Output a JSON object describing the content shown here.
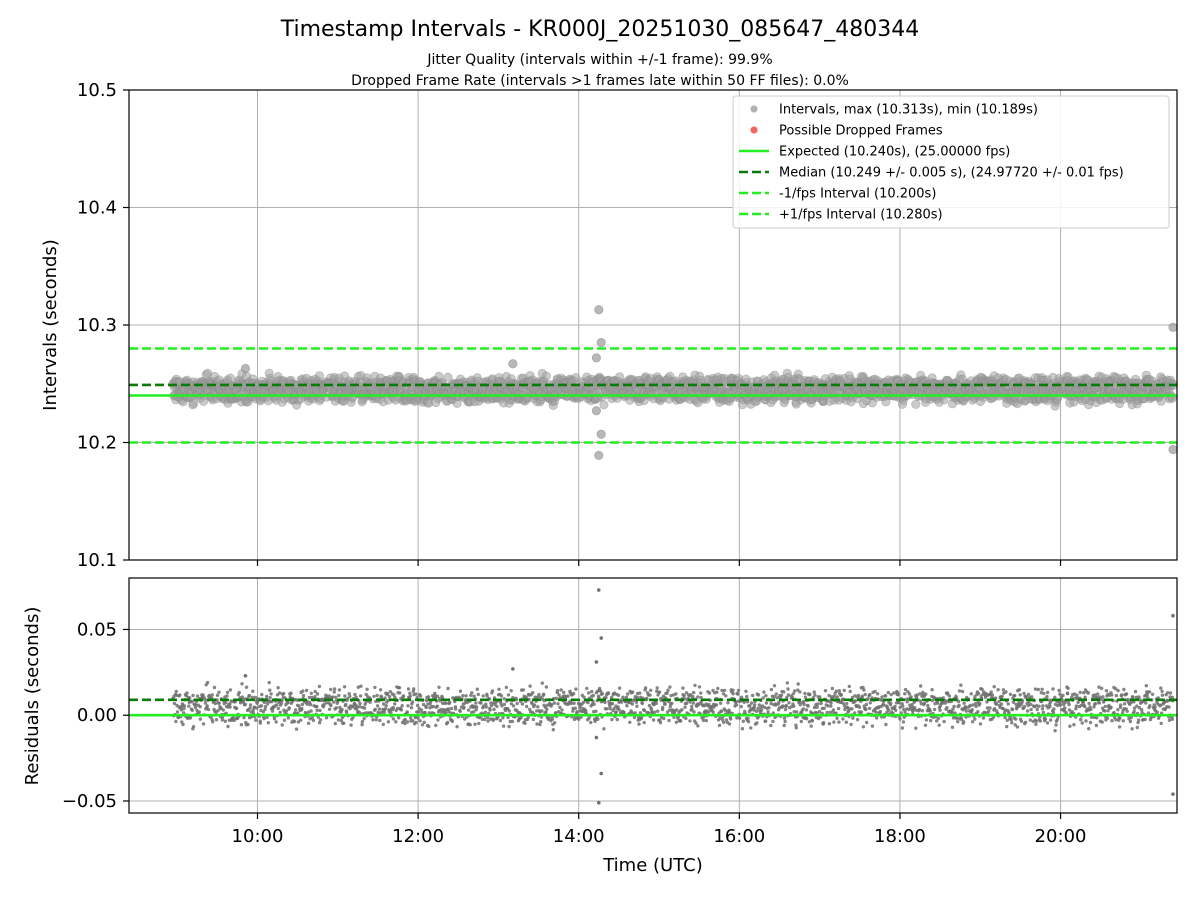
{
  "chart_data": {
    "type": "scatter",
    "title": "Timestamp Intervals - KR000J_20251030_085647_480344",
    "subtitle_1": "Jitter Quality (intervals within +/-1 frame): 99.9%",
    "subtitle_2": "Dropped Frame Rate (intervals >1 frames late within 50 FF files): 0.0%",
    "xlabel": "Time (UTC)",
    "x_tick_labels": [
      "10:00",
      "12:00",
      "14:00",
      "16:00",
      "18:00",
      "20:00"
    ],
    "x_ticks_hours": [
      10,
      12,
      14,
      16,
      18,
      20
    ],
    "xlim_hours": [
      8.4,
      21.45
    ],
    "data_start_hour": 8.95,
    "data_end_hour": 21.4,
    "top_panel": {
      "ylabel": "Intervals (seconds)",
      "ylim": [
        10.1,
        10.5
      ],
      "y_ticks": [
        10.1,
        10.2,
        10.3,
        10.4,
        10.5
      ],
      "y_tick_labels": [
        "10.1",
        "10.2",
        "10.3",
        "10.4",
        "10.5"
      ],
      "band_center": 10.245,
      "band_halfwidth": 0.01,
      "outlier_points": [
        {
          "t": 14.25,
          "v": 10.313
        },
        {
          "t": 14.28,
          "v": 10.285
        },
        {
          "t": 14.22,
          "v": 10.272
        },
        {
          "t": 14.22,
          "v": 10.227
        },
        {
          "t": 14.28,
          "v": 10.207
        },
        {
          "t": 14.25,
          "v": 10.189
        },
        {
          "t": 21.4,
          "v": 10.298
        },
        {
          "t": 21.4,
          "v": 10.194
        },
        {
          "t": 13.18,
          "v": 10.267
        },
        {
          "t": 9.85,
          "v": 10.263
        }
      ],
      "reference_lines": [
        {
          "name": "expected",
          "value": 10.24,
          "style": "solid",
          "color": "#22ee22"
        },
        {
          "name": "median",
          "value": 10.249,
          "style": "dashed",
          "color": "#0a7a0a"
        },
        {
          "name": "minus-one-fps",
          "value": 10.2,
          "style": "dashed",
          "color": "#22ee22"
        },
        {
          "name": "plus-one-fps",
          "value": 10.28,
          "style": "dashed",
          "color": "#22ee22"
        }
      ]
    },
    "bottom_panel": {
      "ylabel": "Residuals (seconds)",
      "ylim": [
        -0.057,
        0.08
      ],
      "y_ticks": [
        -0.05,
        0.0,
        0.05
      ],
      "y_tick_labels": [
        "−0.05",
        "0.00",
        "0.05"
      ],
      "outlier_points": [
        {
          "t": 14.25,
          "v": 0.073
        },
        {
          "t": 14.28,
          "v": 0.045
        },
        {
          "t": 14.22,
          "v": 0.031
        },
        {
          "t": 14.22,
          "v": -0.013
        },
        {
          "t": 14.28,
          "v": -0.034
        },
        {
          "t": 14.25,
          "v": -0.051
        },
        {
          "t": 21.4,
          "v": 0.058
        },
        {
          "t": 21.4,
          "v": -0.046
        },
        {
          "t": 13.18,
          "v": 0.027
        },
        {
          "t": 9.85,
          "v": 0.023
        }
      ],
      "reference_lines": [
        {
          "name": "expected",
          "value": 0.0,
          "style": "solid",
          "color": "#22ee22"
        },
        {
          "name": "median",
          "value": 0.009,
          "style": "dashed",
          "color": "#0a7a0a"
        }
      ]
    },
    "legend": {
      "placement": "top-right",
      "entries": [
        {
          "label": "Intervals, max (10.313s), min (10.189s)",
          "marker": "dot",
          "color": "#a9a9a9"
        },
        {
          "label": "Possible Dropped Frames",
          "marker": "dot",
          "color": "#ee5555"
        },
        {
          "label": "Expected (10.240s), (25.00000 fps)",
          "marker": "solid",
          "color": "#22ee22"
        },
        {
          "label": "Median (10.249 +/- 0.005 s), (24.97720 +/- 0.01 fps)",
          "marker": "dashed",
          "color": "#0a7a0a"
        },
        {
          "label": "-1/fps Interval (10.200s)",
          "marker": "dashed",
          "color": "#22ee22"
        },
        {
          "label": "+1/fps Interval (10.280s)",
          "marker": "dashed",
          "color": "#22ee22"
        }
      ]
    },
    "colors": {
      "points": "#a0a0a0",
      "points_edge": "#888888",
      "residual_points": "#707070",
      "dropped": "#ee5555",
      "grid": "#b0b0b0"
    }
  }
}
